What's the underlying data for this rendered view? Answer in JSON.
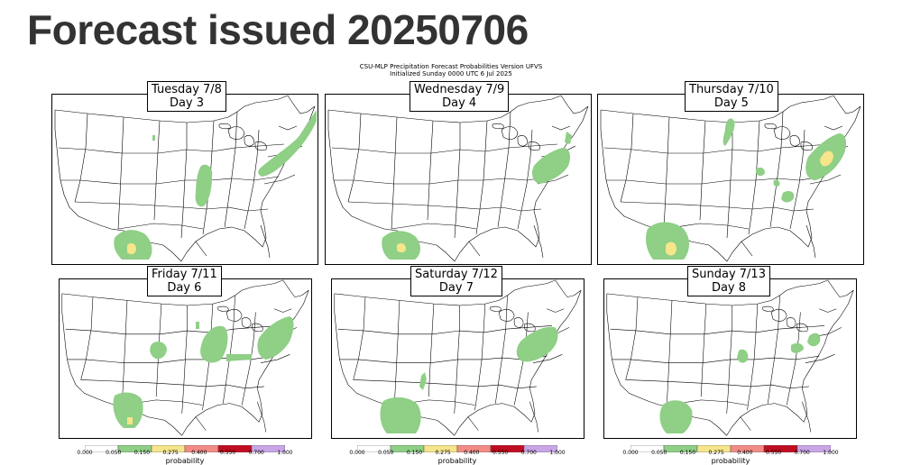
{
  "page_title": "Forecast issued 20250706",
  "header": {
    "line1": "CSU-MLP Precipitation Forecast Probabilities Version UFVS",
    "line2": "Initialized Sunday 0000 UTC 6 Jul 2025"
  },
  "colors": {
    "bins": [
      "#ffffff",
      "#8fcf86",
      "#f6e58a",
      "#f28b86",
      "#c00d22",
      "#c9a6e6"
    ],
    "map_line": "#000000"
  },
  "panels": [
    {
      "day_name": "Tuesday 7/8",
      "day_num": "Day 3"
    },
    {
      "day_name": "Wednesday 7/9",
      "day_num": "Day 4"
    },
    {
      "day_name": "Thursday 7/10",
      "day_num": "Day 5"
    },
    {
      "day_name": "Friday 7/11",
      "day_num": "Day 6"
    },
    {
      "day_name": "Saturday 7/12",
      "day_num": "Day 7"
    },
    {
      "day_name": "Sunday 7/13",
      "day_num": "Day 8"
    }
  ],
  "colorbar": {
    "ticks": [
      "0.000",
      "0.050",
      "0.150",
      "0.275",
      "0.400",
      "0.550",
      "0.700",
      "1.000"
    ],
    "label": "probability"
  }
}
